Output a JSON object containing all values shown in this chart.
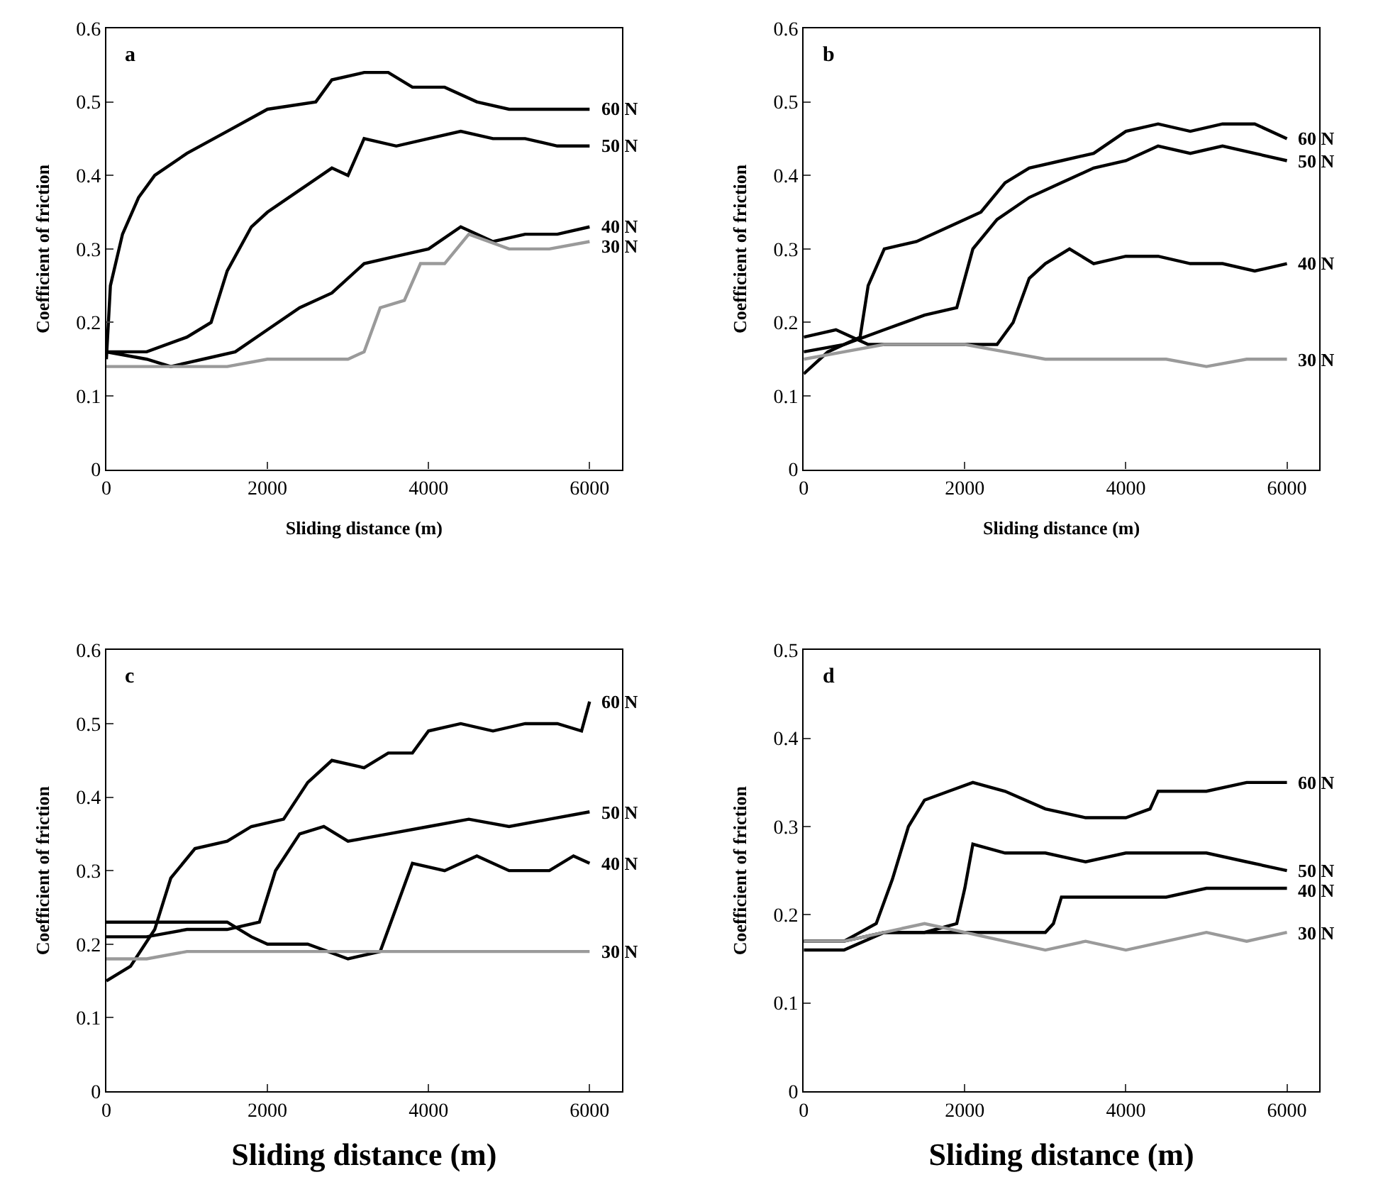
{
  "chart_data": [
    {
      "type": "line",
      "title": "a",
      "xlabel": "Sliding distance (m)",
      "ylabel": "Coefficient of friction",
      "xlim": [
        0,
        6400
      ],
      "xticks": [
        0,
        2000,
        4000,
        6000
      ],
      "ylim": [
        0,
        0.6
      ],
      "yticks": [
        0,
        0.1,
        0.2,
        0.3,
        0.4,
        0.5,
        0.6
      ],
      "legend": false,
      "marker": "none",
      "line_style": "solid",
      "series": [
        {
          "name": "60 N",
          "color": "#000000",
          "x": [
            0,
            50,
            200,
            400,
            600,
            1000,
            1500,
            2000,
            2600,
            2800,
            3200,
            3500,
            3800,
            4200,
            4600,
            5000,
            5400,
            5800,
            6000
          ],
          "values": [
            0.15,
            0.25,
            0.32,
            0.37,
            0.4,
            0.43,
            0.46,
            0.49,
            0.5,
            0.53,
            0.54,
            0.54,
            0.52,
            0.52,
            0.5,
            0.49,
            0.49,
            0.49,
            0.49
          ]
        },
        {
          "name": "50 N",
          "color": "#000000",
          "x": [
            0,
            500,
            1000,
            1300,
            1500,
            1800,
            2000,
            2400,
            2800,
            3000,
            3200,
            3600,
            4000,
            4400,
            4800,
            5200,
            5600,
            6000
          ],
          "values": [
            0.16,
            0.16,
            0.18,
            0.2,
            0.27,
            0.33,
            0.35,
            0.38,
            0.41,
            0.4,
            0.45,
            0.44,
            0.45,
            0.46,
            0.45,
            0.45,
            0.44,
            0.44
          ]
        },
        {
          "name": "40 N",
          "color": "#000000",
          "x": [
            0,
            500,
            800,
            1200,
            1600,
            2000,
            2400,
            2800,
            3200,
            3600,
            4000,
            4400,
            4800,
            5200,
            5600,
            6000
          ],
          "values": [
            0.16,
            0.15,
            0.14,
            0.15,
            0.16,
            0.19,
            0.22,
            0.24,
            0.28,
            0.29,
            0.3,
            0.33,
            0.31,
            0.32,
            0.32,
            0.33
          ]
        },
        {
          "name": "30 N",
          "color": "#9a9a9a",
          "x": [
            0,
            500,
            1000,
            1500,
            2000,
            2500,
            3000,
            3200,
            3400,
            3700,
            3900,
            4200,
            4500,
            5000,
            5500,
            6000
          ],
          "values": [
            0.14,
            0.14,
            0.14,
            0.14,
            0.15,
            0.15,
            0.15,
            0.16,
            0.22,
            0.23,
            0.28,
            0.28,
            0.32,
            0.3,
            0.3,
            0.31
          ]
        }
      ]
    },
    {
      "type": "line",
      "title": "b",
      "xlabel": "Sliding distance (m)",
      "ylabel": "Coefficient of friction",
      "xlim": [
        0,
        6400
      ],
      "xticks": [
        0,
        2000,
        4000,
        6000
      ],
      "ylim": [
        0,
        0.6
      ],
      "yticks": [
        0,
        0.1,
        0.2,
        0.3,
        0.4,
        0.5,
        0.6
      ],
      "legend": false,
      "marker": "none",
      "line_style": "solid",
      "series": [
        {
          "name": "60 N",
          "color": "#000000",
          "x": [
            0,
            300,
            700,
            800,
            1000,
            1400,
            1800,
            2200,
            2500,
            2800,
            3200,
            3600,
            4000,
            4400,
            4800,
            5200,
            5600,
            6000
          ],
          "values": [
            0.13,
            0.16,
            0.18,
            0.25,
            0.3,
            0.31,
            0.33,
            0.35,
            0.39,
            0.41,
            0.42,
            0.43,
            0.46,
            0.47,
            0.46,
            0.47,
            0.47,
            0.45
          ]
        },
        {
          "name": "50 N",
          "color": "#000000",
          "x": [
            0,
            500,
            1000,
            1500,
            1900,
            2100,
            2400,
            2800,
            3200,
            3600,
            4000,
            4400,
            4800,
            5200,
            5600,
            6000
          ],
          "values": [
            0.16,
            0.17,
            0.19,
            0.21,
            0.22,
            0.3,
            0.34,
            0.37,
            0.39,
            0.41,
            0.42,
            0.44,
            0.43,
            0.44,
            0.43,
            0.42
          ]
        },
        {
          "name": "40 N",
          "color": "#000000",
          "x": [
            0,
            400,
            800,
            1200,
            1600,
            2000,
            2400,
            2600,
            2800,
            3000,
            3300,
            3600,
            4000,
            4400,
            4800,
            5200,
            5600,
            6000
          ],
          "values": [
            0.18,
            0.19,
            0.17,
            0.17,
            0.17,
            0.17,
            0.17,
            0.2,
            0.26,
            0.28,
            0.3,
            0.28,
            0.29,
            0.29,
            0.28,
            0.28,
            0.27,
            0.28
          ]
        },
        {
          "name": "30 N",
          "color": "#9a9a9a",
          "x": [
            0,
            500,
            1000,
            1500,
            2000,
            2500,
            3000,
            3500,
            4000,
            4500,
            5000,
            5500,
            6000
          ],
          "values": [
            0.15,
            0.16,
            0.17,
            0.17,
            0.17,
            0.16,
            0.15,
            0.15,
            0.15,
            0.15,
            0.14,
            0.15,
            0.15
          ]
        }
      ]
    },
    {
      "type": "line",
      "title": "c",
      "xlabel": "Sliding distance (m)",
      "ylabel": "Coefficient of friction",
      "xlim": [
        0,
        6400
      ],
      "xticks": [
        0,
        2000,
        4000,
        6000
      ],
      "ylim": [
        0,
        0.6
      ],
      "yticks": [
        0,
        0.1,
        0.2,
        0.3,
        0.4,
        0.5,
        0.6
      ],
      "legend": false,
      "marker": "none",
      "line_style": "solid",
      "series": [
        {
          "name": "60 N",
          "color": "#000000",
          "x": [
            0,
            300,
            600,
            800,
            1100,
            1500,
            1800,
            2200,
            2500,
            2800,
            3200,
            3500,
            3800,
            4000,
            4400,
            4800,
            5200,
            5600,
            5900,
            6000
          ],
          "values": [
            0.15,
            0.17,
            0.22,
            0.29,
            0.33,
            0.34,
            0.36,
            0.37,
            0.42,
            0.45,
            0.44,
            0.46,
            0.46,
            0.49,
            0.5,
            0.49,
            0.5,
            0.5,
            0.49,
            0.53
          ]
        },
        {
          "name": "50 N",
          "color": "#000000",
          "x": [
            0,
            500,
            1000,
            1500,
            1900,
            2100,
            2400,
            2700,
            3000,
            3500,
            4000,
            4500,
            5000,
            5500,
            6000
          ],
          "values": [
            0.21,
            0.21,
            0.22,
            0.22,
            0.23,
            0.3,
            0.35,
            0.36,
            0.34,
            0.35,
            0.36,
            0.37,
            0.36,
            0.37,
            0.38
          ]
        },
        {
          "name": "40 N",
          "color": "#000000",
          "x": [
            0,
            500,
            1000,
            1500,
            1800,
            2000,
            2500,
            3000,
            3400,
            3600,
            3800,
            4200,
            4600,
            5000,
            5500,
            5800,
            6000
          ],
          "values": [
            0.23,
            0.23,
            0.23,
            0.23,
            0.21,
            0.2,
            0.2,
            0.18,
            0.19,
            0.25,
            0.31,
            0.3,
            0.32,
            0.3,
            0.3,
            0.32,
            0.31
          ]
        },
        {
          "name": "30 N",
          "color": "#9a9a9a",
          "x": [
            0,
            500,
            1000,
            1500,
            2000,
            3000,
            4000,
            5000,
            6000
          ],
          "values": [
            0.18,
            0.18,
            0.19,
            0.19,
            0.19,
            0.19,
            0.19,
            0.19,
            0.19
          ]
        }
      ]
    },
    {
      "type": "line",
      "title": "d",
      "xlabel": "Sliding distance (m)",
      "ylabel": "Coefficient of friction",
      "xlim": [
        0,
        6400
      ],
      "xticks": [
        0,
        2000,
        4000,
        6000
      ],
      "ylim": [
        0,
        0.5
      ],
      "yticks": [
        0,
        0.1,
        0.2,
        0.3,
        0.4,
        0.5
      ],
      "legend": false,
      "marker": "none",
      "line_style": "solid",
      "series": [
        {
          "name": "60 N",
          "color": "#000000",
          "x": [
            0,
            500,
            900,
            1100,
            1300,
            1500,
            1800,
            2100,
            2500,
            3000,
            3500,
            4000,
            4300,
            4400,
            5000,
            5500,
            6000
          ],
          "values": [
            0.17,
            0.17,
            0.19,
            0.24,
            0.3,
            0.33,
            0.34,
            0.35,
            0.34,
            0.32,
            0.31,
            0.31,
            0.32,
            0.34,
            0.34,
            0.35,
            0.35
          ]
        },
        {
          "name": "50 N",
          "color": "#000000",
          "x": [
            0,
            500,
            1000,
            1500,
            1900,
            2000,
            2100,
            2500,
            3000,
            3500,
            4000,
            4500,
            5000,
            5500,
            6000
          ],
          "values": [
            0.17,
            0.17,
            0.18,
            0.18,
            0.19,
            0.23,
            0.28,
            0.27,
            0.27,
            0.26,
            0.27,
            0.27,
            0.27,
            0.26,
            0.25
          ]
        },
        {
          "name": "40 N",
          "color": "#000000",
          "x": [
            0,
            500,
            1000,
            1500,
            2000,
            2500,
            3000,
            3100,
            3200,
            3600,
            4000,
            4500,
            5000,
            5500,
            6000
          ],
          "values": [
            0.16,
            0.16,
            0.18,
            0.18,
            0.18,
            0.18,
            0.18,
            0.19,
            0.22,
            0.22,
            0.22,
            0.22,
            0.23,
            0.23,
            0.23
          ]
        },
        {
          "name": "30 N",
          "color": "#9a9a9a",
          "x": [
            0,
            500,
            1000,
            1500,
            2000,
            2500,
            3000,
            3500,
            4000,
            4500,
            5000,
            5500,
            6000
          ],
          "values": [
            0.17,
            0.17,
            0.18,
            0.19,
            0.18,
            0.17,
            0.16,
            0.17,
            0.16,
            0.17,
            0.18,
            0.17,
            0.18
          ]
        }
      ]
    }
  ]
}
